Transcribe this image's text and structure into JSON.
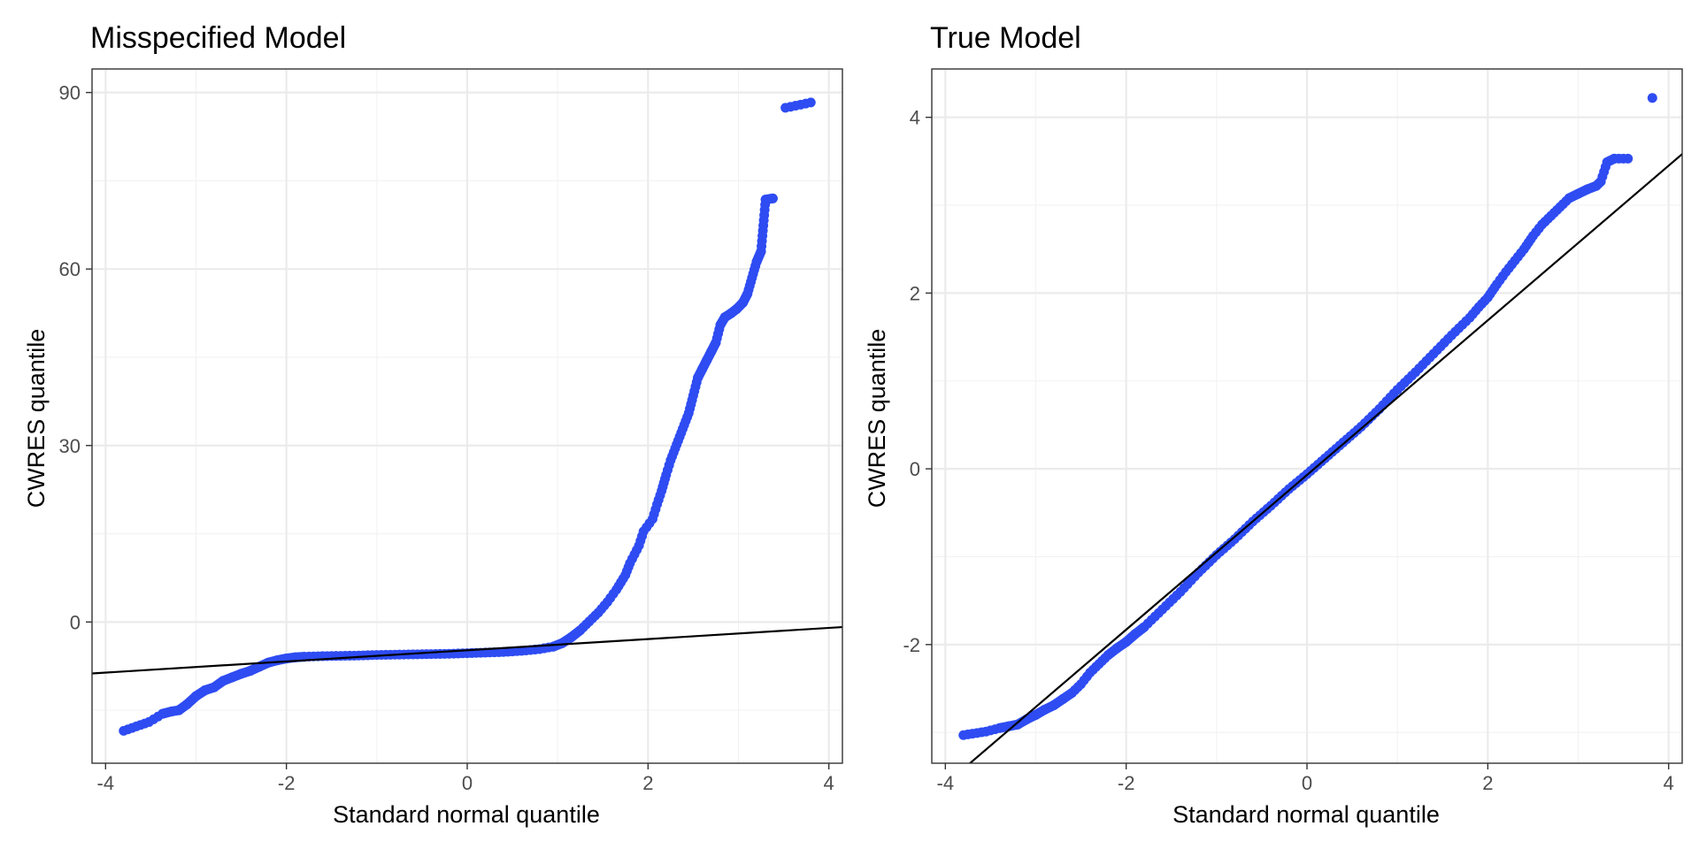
{
  "chart_data": [
    {
      "type": "scatter",
      "title": "Misspecified Model",
      "xlabel": "Standard normal quantile",
      "ylabel": "CWRES quantile",
      "xlim": [
        -4.15,
        4.15
      ],
      "ylim": [
        -24,
        94
      ],
      "xticks": [
        -4,
        -2,
        0,
        2,
        4
      ],
      "yticks": [
        0,
        30,
        60,
        90
      ],
      "point_color": "#2e4cf2",
      "reference_line": {
        "slope": 0.95,
        "intercept": -4.8
      },
      "grid": true,
      "series": [
        {
          "points": [
            [
              -3.8,
              -18.5
            ],
            [
              -3.52,
              -17.0
            ],
            [
              -3.37,
              -15.6
            ],
            [
              -3.27,
              -15.2
            ],
            [
              -3.19,
              -15.0
            ],
            [
              -3.1,
              -14.0
            ],
            [
              -3.0,
              -12.6
            ],
            [
              -2.9,
              -11.6
            ],
            [
              -2.8,
              -11.1
            ],
            [
              -2.7,
              -10.0
            ],
            [
              -2.6,
              -9.4
            ],
            [
              -2.5,
              -8.8
            ],
            [
              -2.4,
              -8.3
            ],
            [
              -2.3,
              -7.6
            ],
            [
              -2.2,
              -6.9
            ],
            [
              -2.1,
              -6.5
            ],
            [
              -2.0,
              -6.2
            ],
            [
              -1.9,
              -6.0
            ],
            [
              -1.8,
              -5.9
            ],
            [
              -1.6,
              -5.8
            ],
            [
              -1.4,
              -5.75
            ],
            [
              -1.2,
              -5.7
            ],
            [
              -1.0,
              -5.6
            ],
            [
              -0.8,
              -5.55
            ],
            [
              -0.6,
              -5.5
            ],
            [
              -0.4,
              -5.45
            ],
            [
              -0.2,
              -5.4
            ],
            [
              0.0,
              -5.3
            ],
            [
              0.2,
              -5.2
            ],
            [
              0.4,
              -5.1
            ],
            [
              0.6,
              -4.9
            ],
            [
              0.8,
              -4.6
            ],
            [
              0.95,
              -4.2
            ],
            [
              1.05,
              -3.6
            ],
            [
              1.15,
              -2.6
            ],
            [
              1.25,
              -1.4
            ],
            [
              1.35,
              0.1
            ],
            [
              1.45,
              1.6
            ],
            [
              1.55,
              3.4
            ],
            [
              1.65,
              5.5
            ],
            [
              1.75,
              8.0
            ],
            [
              1.8,
              10.0
            ],
            [
              1.9,
              13.0
            ],
            [
              1.95,
              15.4
            ],
            [
              2.05,
              17.5
            ],
            [
              2.1,
              20.0
            ],
            [
              2.15,
              22.3
            ],
            [
              2.2,
              25.0
            ],
            [
              2.25,
              27.5
            ],
            [
              2.3,
              29.5
            ],
            [
              2.35,
              31.5
            ],
            [
              2.4,
              33.5
            ],
            [
              2.45,
              35.5
            ],
            [
              2.5,
              38.5
            ],
            [
              2.55,
              41.5
            ],
            [
              2.6,
              43.0
            ],
            [
              2.65,
              44.5
            ],
            [
              2.7,
              46.0
            ],
            [
              2.75,
              47.5
            ],
            [
              2.8,
              50.5
            ],
            [
              2.85,
              51.8
            ],
            [
              2.92,
              52.5
            ],
            [
              2.98,
              53.2
            ],
            [
              3.05,
              54.3
            ],
            [
              3.1,
              55.8
            ],
            [
              3.15,
              58.5
            ],
            [
              3.2,
              61.2
            ],
            [
              3.25,
              63.0
            ],
            [
              3.3,
              71.8
            ],
            [
              3.38,
              72.0
            ],
            [
              3.52,
              87.4
            ],
            [
              3.8,
              88.3
            ]
          ]
        }
      ]
    },
    {
      "type": "scatter",
      "title": "True Model",
      "xlabel": "Standard normal quantile",
      "ylabel": "CWRES quantile",
      "xlim": [
        -4.15,
        4.15
      ],
      "ylim": [
        -3.35,
        4.55
      ],
      "xticks": [
        -4,
        -2,
        0,
        2,
        4
      ],
      "yticks": [
        -2,
        0,
        2,
        4
      ],
      "point_color": "#2e4cf2",
      "reference_line": {
        "slope": 0.88,
        "intercept": -0.07
      },
      "grid": true,
      "series": [
        {
          "points": [
            [
              -3.8,
              -3.03
            ],
            [
              -3.55,
              -2.99
            ],
            [
              -3.4,
              -2.95
            ],
            [
              -3.3,
              -2.93
            ],
            [
              -3.2,
              -2.91
            ],
            [
              -3.1,
              -2.85
            ],
            [
              -3.0,
              -2.8
            ],
            [
              -2.9,
              -2.74
            ],
            [
              -2.8,
              -2.69
            ],
            [
              -2.7,
              -2.62
            ],
            [
              -2.6,
              -2.55
            ],
            [
              -2.5,
              -2.45
            ],
            [
              -2.4,
              -2.32
            ],
            [
              -2.3,
              -2.22
            ],
            [
              -2.2,
              -2.12
            ],
            [
              -2.1,
              -2.04
            ],
            [
              -2.0,
              -1.97
            ],
            [
              -1.9,
              -1.88
            ],
            [
              -1.8,
              -1.8
            ],
            [
              -1.6,
              -1.6
            ],
            [
              -1.4,
              -1.4
            ],
            [
              -1.2,
              -1.18
            ],
            [
              -1.0,
              -0.98
            ],
            [
              -0.8,
              -0.8
            ],
            [
              -0.6,
              -0.6
            ],
            [
              -0.4,
              -0.42
            ],
            [
              -0.2,
              -0.23
            ],
            [
              0.0,
              -0.06
            ],
            [
              0.2,
              0.12
            ],
            [
              0.4,
              0.3
            ],
            [
              0.6,
              0.48
            ],
            [
              0.8,
              0.68
            ],
            [
              1.0,
              0.9
            ],
            [
              1.2,
              1.1
            ],
            [
              1.4,
              1.31
            ],
            [
              1.6,
              1.52
            ],
            [
              1.8,
              1.72
            ],
            [
              1.9,
              1.84
            ],
            [
              2.0,
              1.95
            ],
            [
              2.1,
              2.1
            ],
            [
              2.2,
              2.24
            ],
            [
              2.3,
              2.37
            ],
            [
              2.4,
              2.5
            ],
            [
              2.5,
              2.65
            ],
            [
              2.6,
              2.78
            ],
            [
              2.7,
              2.88
            ],
            [
              2.8,
              2.98
            ],
            [
              2.9,
              3.08
            ],
            [
              3.0,
              3.13
            ],
            [
              3.1,
              3.18
            ],
            [
              3.2,
              3.22
            ],
            [
              3.25,
              3.27
            ],
            [
              3.32,
              3.49
            ],
            [
              3.4,
              3.53
            ],
            [
              3.55,
              3.53
            ],
            [
              3.82,
              4.22
            ]
          ]
        }
      ]
    }
  ]
}
